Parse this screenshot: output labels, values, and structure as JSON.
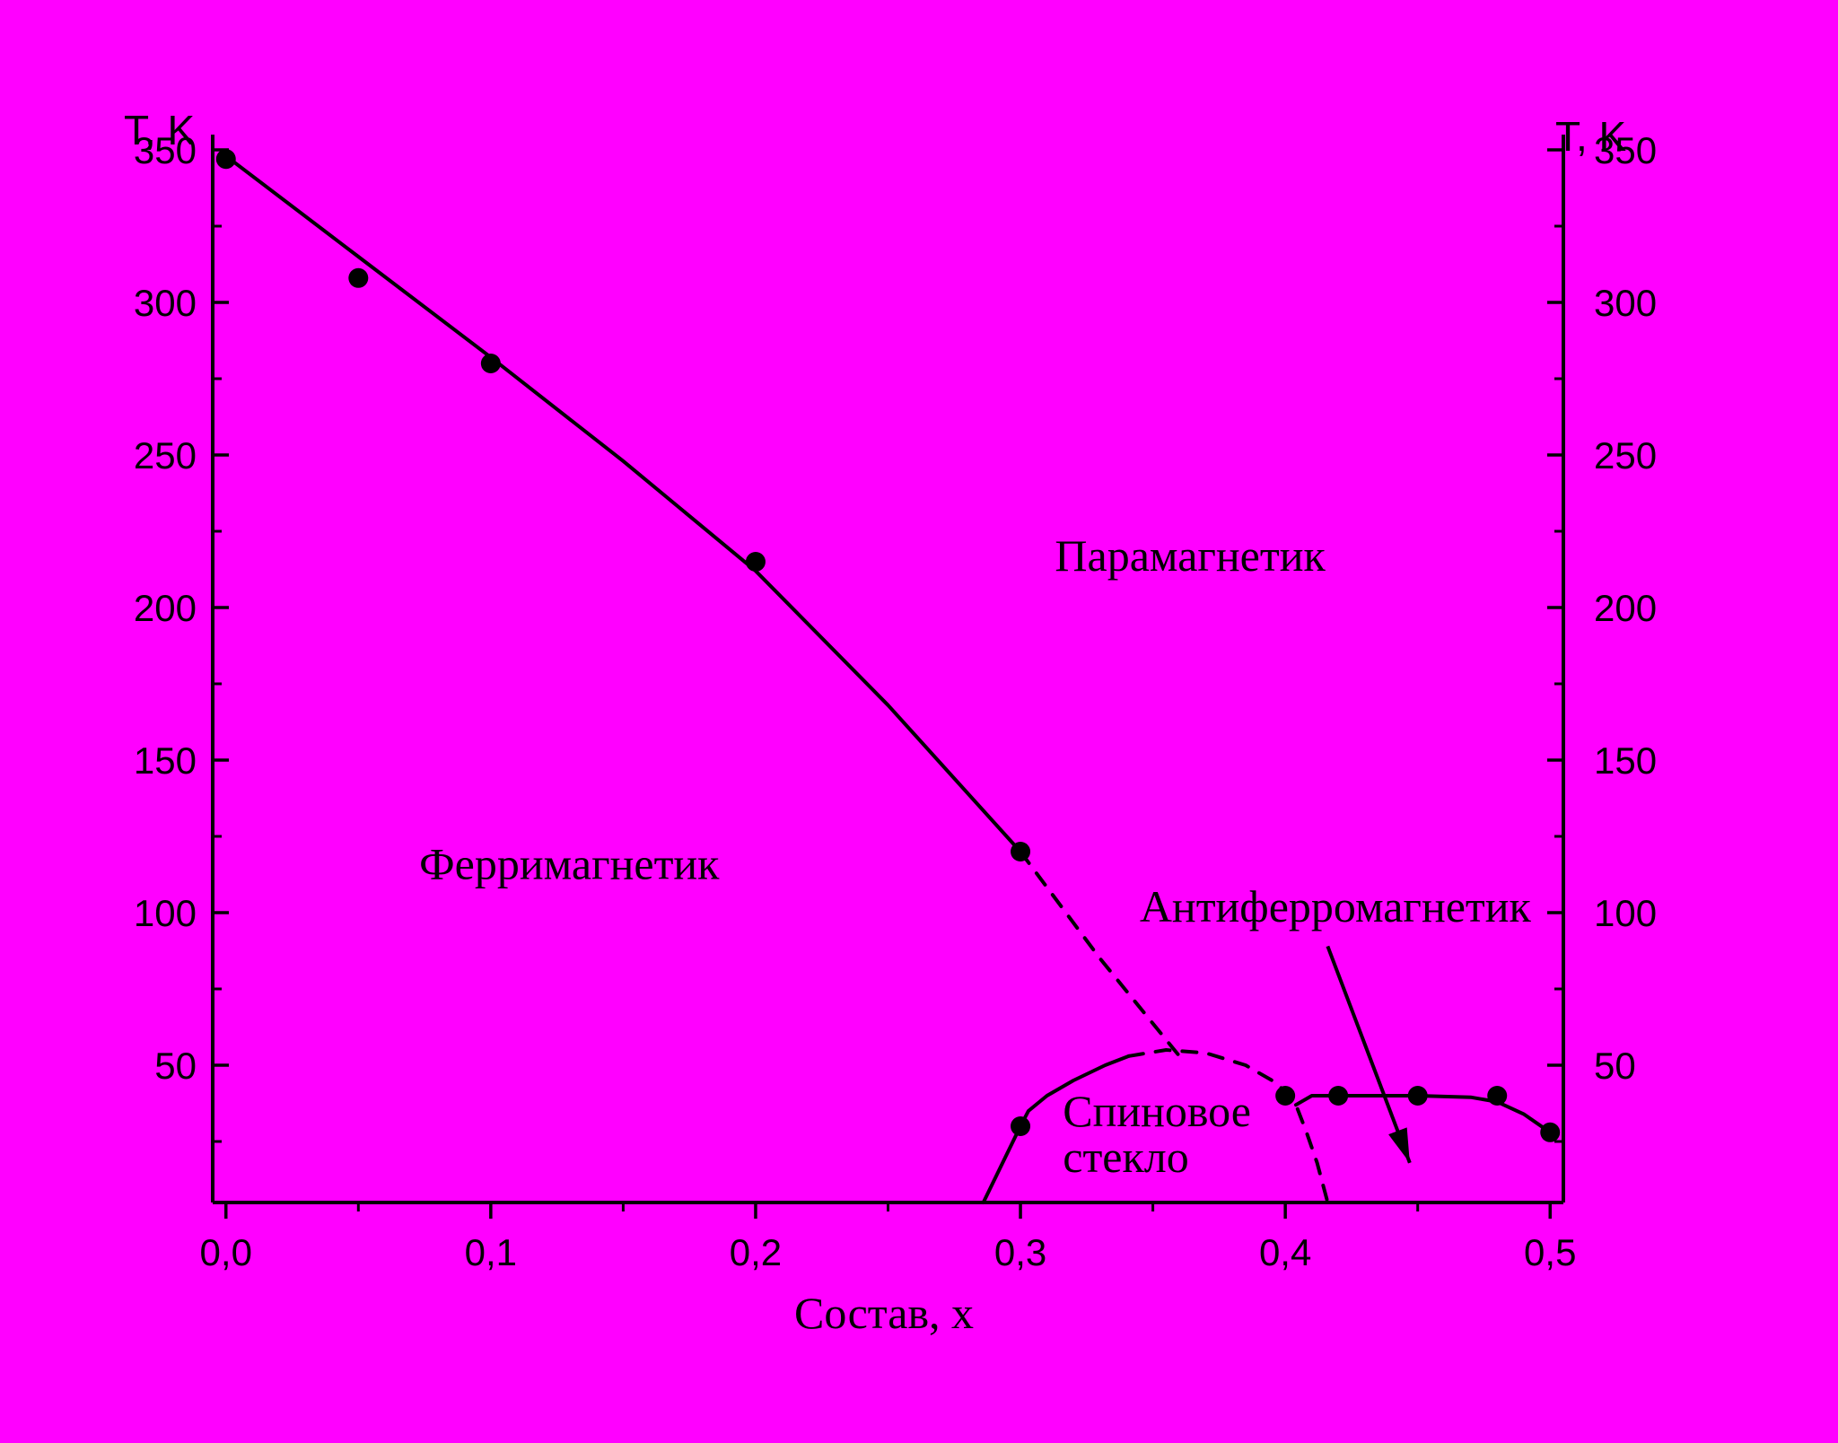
{
  "chart_data": {
    "type": "line",
    "background_color": "#ff00ff",
    "ink_color": "#000000",
    "xlabel": "Состав, x",
    "ylabel_left": "T, K",
    "ylabel_right": "T, K",
    "xlim": [
      -0.005,
      0.505
    ],
    "ylim": [
      5,
      355
    ],
    "x_ticks": [
      0.0,
      0.1,
      0.2,
      0.3,
      0.4,
      0.5
    ],
    "x_tick_labels": [
      "0,0",
      "0,1",
      "0,2",
      "0,3",
      "0,4",
      "0,5"
    ],
    "y_ticks": [
      50,
      100,
      150,
      200,
      250,
      300,
      350
    ],
    "y_tick_labels": [
      "50",
      "100",
      "150",
      "200",
      "250",
      "300",
      "350"
    ],
    "grid": false,
    "series": [
      {
        "style": "solid-with-markers",
        "x": [
          0.0,
          0.05,
          0.1,
          0.2,
          0.3
        ],
        "y": [
          347,
          308,
          280,
          215,
          120
        ]
      },
      {
        "style": "markers",
        "x": [
          0.3
        ],
        "y": [
          30
        ]
      },
      {
        "style": "solid-with-markers",
        "x": [
          0.4,
          0.42,
          0.45,
          0.48,
          0.5
        ],
        "y": [
          40,
          40,
          40,
          40,
          28
        ]
      }
    ],
    "boundary_lines": [
      {
        "style": "solid",
        "x": [
          0.0,
          0.05,
          0.1,
          0.15,
          0.2,
          0.25,
          0.3
        ],
        "y": [
          348,
          315,
          282,
          248,
          212,
          168,
          120
        ]
      },
      {
        "style": "dashed",
        "x": [
          0.3,
          0.33,
          0.36
        ],
        "y": [
          120,
          85,
          53
        ]
      },
      {
        "style": "solid",
        "x": [
          0.286,
          0.3,
          0.303,
          0.31,
          0.32,
          0.332,
          0.341
        ],
        "y": [
          5,
          30,
          35,
          40,
          45,
          50,
          53
        ]
      },
      {
        "style": "dashed",
        "x": [
          0.341,
          0.355,
          0.37,
          0.385,
          0.397,
          0.404,
          0.408,
          0.412,
          0.416
        ],
        "y": [
          53,
          55,
          54,
          50,
          44,
          37,
          28,
          18,
          5
        ]
      },
      {
        "style": "solid",
        "x": [
          0.404,
          0.41,
          0.42,
          0.45,
          0.47,
          0.48,
          0.49,
          0.5
        ],
        "y": [
          37,
          40,
          40,
          40,
          39.5,
          38,
          34,
          28
        ]
      }
    ],
    "annotations": [
      {
        "text": "Парамагнетик",
        "x": 0.313,
        "y": 212
      },
      {
        "text": "Ферримагнетик",
        "x": 0.073,
        "y": 111
      },
      {
        "text": "Антиферромагнетик",
        "x": 0.345,
        "y": 97
      },
      {
        "text": "Спиновое",
        "x": 0.316,
        "y": 30
      },
      {
        "text": "стекло",
        "x": 0.316,
        "y": 15
      }
    ],
    "arrows": [
      {
        "from": {
          "x": 0.416,
          "y": 89
        },
        "to": {
          "x": 0.447,
          "y": 18
        }
      }
    ]
  }
}
